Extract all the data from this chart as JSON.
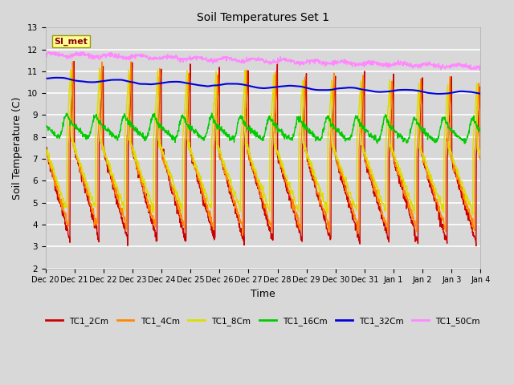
{
  "title": "Soil Temperatures Set 1",
  "xlabel": "Time",
  "ylabel": "Soil Temperature (C)",
  "ylim": [
    2.0,
    13.0
  ],
  "yticks": [
    2.0,
    3.0,
    4.0,
    5.0,
    6.0,
    7.0,
    8.0,
    9.0,
    10.0,
    11.0,
    12.0,
    13.0
  ],
  "bg_color": "#d8d8d8",
  "plot_bg_color": "#d8d8d8",
  "grid_color": "#ffffff",
  "series": [
    {
      "label": "TC1_2Cm",
      "color": "#cc0000",
      "lw": 1.0
    },
    {
      "label": "TC1_4Cm",
      "color": "#ff8800",
      "lw": 1.0
    },
    {
      "label": "TC1_8Cm",
      "color": "#dddd00",
      "lw": 1.0
    },
    {
      "label": "TC1_16Cm",
      "color": "#00cc00",
      "lw": 1.0
    },
    {
      "label": "TC1_32Cm",
      "color": "#0000dd",
      "lw": 1.5
    },
    {
      "label": "TC1_50Cm",
      "color": "#ff88ff",
      "lw": 1.0
    }
  ],
  "annotation": {
    "text": "SI_met",
    "fontsize": 8,
    "color": "#8b0000",
    "bg": "#ffff99",
    "border_color": "#999900"
  },
  "n_points": 1440,
  "x_start": 0,
  "x_end": 15.0,
  "xtick_positions": [
    0,
    1,
    2,
    3,
    4,
    5,
    6,
    7,
    8,
    9,
    10,
    11,
    12,
    13,
    14,
    15
  ],
  "xtick_labels": [
    "Dec 20",
    "Dec 21",
    "Dec 22",
    "Dec 23",
    "Dec 24",
    "Dec 25",
    "Dec 26",
    "Dec 27",
    "Dec 28",
    "Dec 29",
    "Dec 30",
    "Dec 31",
    "Jan 1",
    "Jan 2",
    "Jan 3",
    "Jan 4"
  ],
  "figsize": [
    6.4,
    4.8
  ],
  "dpi": 100
}
